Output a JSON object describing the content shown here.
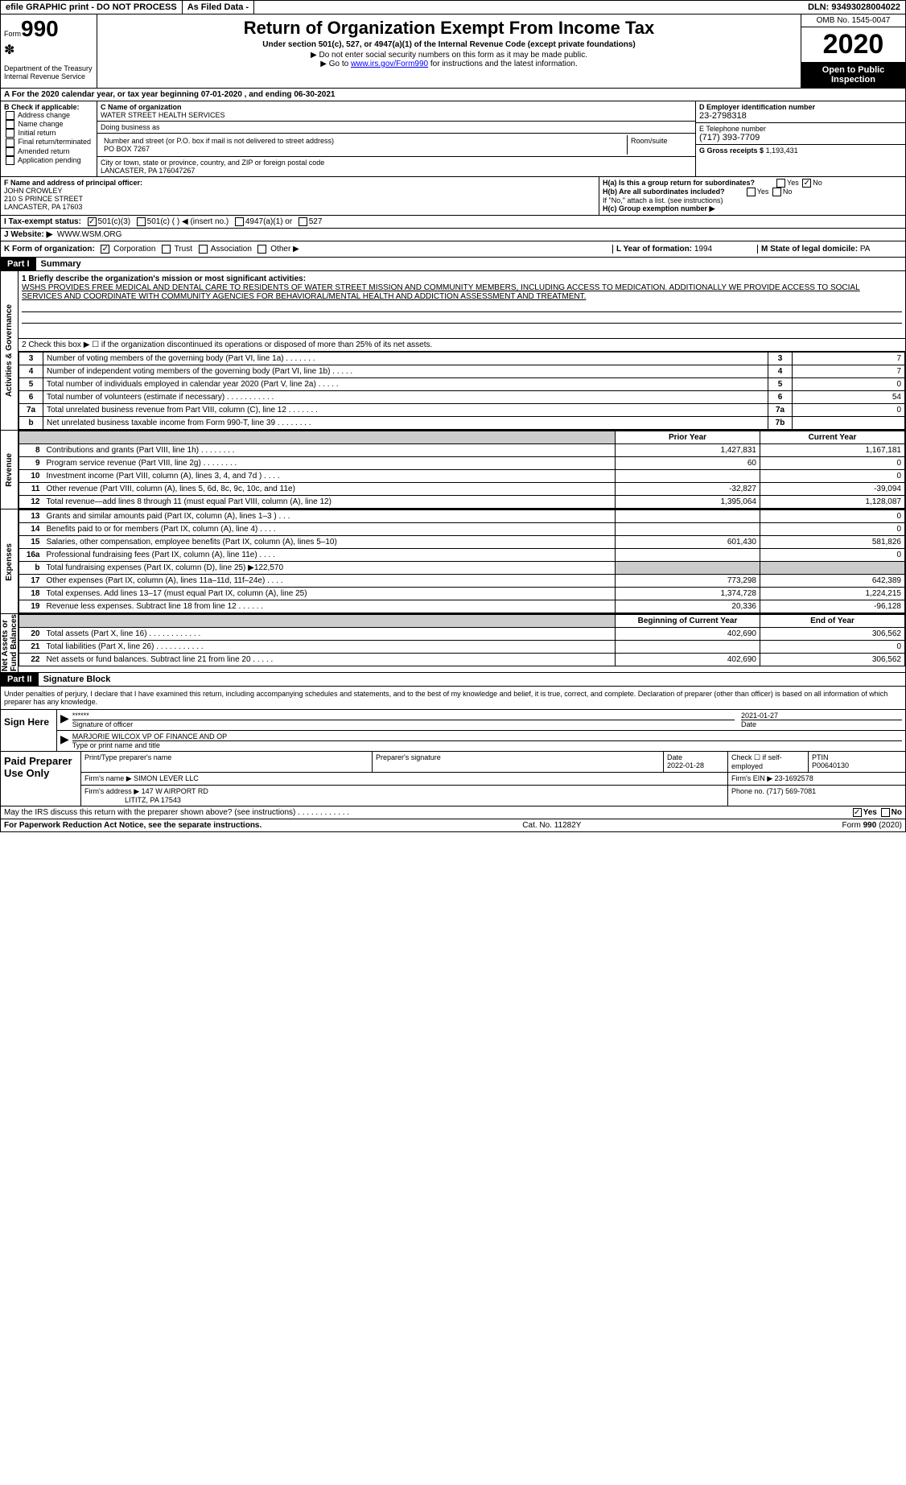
{
  "topbar": {
    "efile": "efile GRAPHIC print - DO NOT PROCESS",
    "asfiled": "As Filed Data -",
    "dln": "DLN: 93493028004022"
  },
  "header": {
    "form_label": "Form",
    "form_num": "990",
    "dept": "Department of the Treasury\nInternal Revenue Service",
    "title": "Return of Organization Exempt From Income Tax",
    "subtitle": "Under section 501(c), 527, or 4947(a)(1) of the Internal Revenue Code (except private foundations)",
    "note1": "▶ Do not enter social security numbers on this form as it may be made public.",
    "note2_pre": "▶ Go to ",
    "note2_link": "www.irs.gov/Form990",
    "note2_post": " for instructions and the latest information.",
    "omb": "OMB No. 1545-0047",
    "year": "2020",
    "open": "Open to Public Inspection"
  },
  "row_a": "A  For the 2020 calendar year, or tax year beginning 07-01-2020  , and ending 06-30-2021",
  "B": {
    "lbl": "B Check if applicable:",
    "items": [
      "Address change",
      "Name change",
      "Initial return",
      "Final return/terminated",
      "Amended return",
      "Application pending"
    ]
  },
  "C": {
    "name_lbl": "C Name of organization",
    "name": "WATER STREET HEALTH SERVICES",
    "dba_lbl": "Doing business as",
    "dba": "",
    "addr_lbl": "Number and street (or P.O. box if mail is not delivered to street address)",
    "addr": "PO BOX 7267",
    "room_lbl": "Room/suite",
    "city_lbl": "City or town, state or province, country, and ZIP or foreign postal code",
    "city": "LANCASTER, PA  176047267"
  },
  "D": {
    "lbl": "D Employer identification number",
    "val": "23-2798318"
  },
  "E": {
    "lbl": "E Telephone number",
    "val": "(717) 393-7709"
  },
  "G": {
    "lbl": "G Gross receipts $",
    "val": "1,193,431"
  },
  "F": {
    "lbl": "F  Name and address of principal officer:",
    "name": "JOHN CROWLEY",
    "street": "210 S PRINCE STREET",
    "city": "LANCASTER, PA  17603"
  },
  "H": {
    "a": "H(a) Is this a group return for subordinates?",
    "b": "H(b) Are all subordinates included?",
    "b_note": "If \"No,\" attach a list. (see instructions)",
    "c": "H(c) Group exemption number ▶"
  },
  "I": {
    "lbl": "I  Tax-exempt status:",
    "opt1": "501(c)(3)",
    "opt2": "501(c) (  ) ◀ (insert no.)",
    "opt3": "4947(a)(1) or",
    "opt4": "527"
  },
  "J": {
    "lbl": "J  Website: ▶",
    "val": "WWW.WSM.ORG"
  },
  "K": {
    "lbl": "K Form of organization:",
    "opts": [
      "Corporation",
      "Trust",
      "Association",
      "Other ▶"
    ]
  },
  "L": {
    "lbl": "L Year of formation:",
    "val": "1994"
  },
  "M": {
    "lbl": "M State of legal domicile:",
    "val": "PA"
  },
  "part1": {
    "hdr": "Part I",
    "title": "Summary",
    "mission_lbl": "1  Briefly describe the organization's mission or most significant activities:",
    "mission": "WSHS PROVIDES FREE MEDICAL AND DENTAL CARE TO RESIDENTS OF WATER STREET MISSION AND COMMUNITY MEMBERS, INCLUDING ACCESS TO MEDICATION. ADDITIONALLY WE PROVIDE ACCESS TO SOCIAL SERVICES AND COORDINATE WITH COMMUNITY AGENCIES FOR BEHAVIORAL/MENTAL HEALTH AND ADDICTION ASSESSMENT AND TREATMENT.",
    "line2": "2  Check this box ▶ ☐ if the organization discontinued its operations or disposed of more than 25% of its net assets.",
    "gov_lines": [
      {
        "n": "3",
        "desc": "Number of voting members of the governing body (Part VI, line 1a)   .   .   .   .   .   .   .",
        "box": "3",
        "val": "7"
      },
      {
        "n": "4",
        "desc": "Number of independent voting members of the governing body (Part VI, line 1b)   .   .   .   .   .",
        "box": "4",
        "val": "7"
      },
      {
        "n": "5",
        "desc": "Total number of individuals employed in calendar year 2020 (Part V, line 2a)   .   .   .   .   .",
        "box": "5",
        "val": "0"
      },
      {
        "n": "6",
        "desc": "Total number of volunteers (estimate if necessary)   .   .   .   .   .   .   .   .   .   .   .",
        "box": "6",
        "val": "54"
      },
      {
        "n": "7a",
        "desc": "Total unrelated business revenue from Part VIII, column (C), line 12   .   .   .   .   .   .   .",
        "box": "7a",
        "val": "0"
      },
      {
        "n": "b",
        "desc": "Net unrelated business taxable income from Form 990-T, line 39   .   .   .   .   .   .   .   .",
        "box": "7b",
        "val": ""
      }
    ],
    "prior_hdr": "Prior Year",
    "curr_hdr": "Current Year",
    "revenue": [
      {
        "n": "8",
        "desc": "Contributions and grants (Part VIII, line 1h)   .   .   .   .   .   .   .   .",
        "prior": "1,427,831",
        "curr": "1,167,181"
      },
      {
        "n": "9",
        "desc": "Program service revenue (Part VIII, line 2g)   .   .   .   .   .   .   .   .",
        "prior": "60",
        "curr": "0"
      },
      {
        "n": "10",
        "desc": "Investment income (Part VIII, column (A), lines 3, 4, and 7d )   .   .   .   .",
        "prior": "",
        "curr": "0"
      },
      {
        "n": "11",
        "desc": "Other revenue (Part VIII, column (A), lines 5, 6d, 8c, 9c, 10c, and 11e)",
        "prior": "-32,827",
        "curr": "-39,094"
      },
      {
        "n": "12",
        "desc": "Total revenue—add lines 8 through 11 (must equal Part VIII, column (A), line 12)",
        "prior": "1,395,064",
        "curr": "1,128,087"
      }
    ],
    "expenses": [
      {
        "n": "13",
        "desc": "Grants and similar amounts paid (Part IX, column (A), lines 1–3 )   .   .   .",
        "prior": "",
        "curr": "0"
      },
      {
        "n": "14",
        "desc": "Benefits paid to or for members (Part IX, column (A), line 4)   .   .   .   .",
        "prior": "",
        "curr": "0"
      },
      {
        "n": "15",
        "desc": "Salaries, other compensation, employee benefits (Part IX, column (A), lines 5–10)",
        "prior": "601,430",
        "curr": "581,826"
      },
      {
        "n": "16a",
        "desc": "Professional fundraising fees (Part IX, column (A), line 11e)   .   .   .   .",
        "prior": "",
        "curr": "0"
      },
      {
        "n": "b",
        "desc": "Total fundraising expenses (Part IX, column (D), line 25) ▶122,570",
        "prior": "grey",
        "curr": "grey"
      },
      {
        "n": "17",
        "desc": "Other expenses (Part IX, column (A), lines 11a–11d, 11f–24e)   .   .   .   .",
        "prior": "773,298",
        "curr": "642,389"
      },
      {
        "n": "18",
        "desc": "Total expenses. Add lines 13–17 (must equal Part IX, column (A), line 25)",
        "prior": "1,374,728",
        "curr": "1,224,215"
      },
      {
        "n": "19",
        "desc": "Revenue less expenses. Subtract line 18 from line 12   .   .   .   .   .   .",
        "prior": "20,336",
        "curr": "-96,128"
      }
    ],
    "net_hdr_prior": "Beginning of Current Year",
    "net_hdr_curr": "End of Year",
    "net": [
      {
        "n": "20",
        "desc": "Total assets (Part X, line 16)   .   .   .   .   .   .   .   .   .   .   .   .",
        "prior": "402,690",
        "curr": "306,562"
      },
      {
        "n": "21",
        "desc": "Total liabilities (Part X, line 26)   .   .   .   .   .   .   .   .   .   .   .",
        "prior": "",
        "curr": "0"
      },
      {
        "n": "22",
        "desc": "Net assets or fund balances. Subtract line 21 from line 20   .   .   .   .   .",
        "prior": "402,690",
        "curr": "306,562"
      }
    ]
  },
  "vert": {
    "gov": "Activities & Governance",
    "rev": "Revenue",
    "exp": "Expenses",
    "net": "Net Assets or\nFund Balances"
  },
  "part2": {
    "hdr": "Part II",
    "title": "Signature Block",
    "decl": "Under penalties of perjury, I declare that I have examined this return, including accompanying schedules and statements, and to the best of my knowledge and belief, it is true, correct, and complete. Declaration of preparer (other than officer) is based on all information of which preparer has any knowledge.",
    "sign_here": "Sign Here",
    "sig_stars": "******",
    "sig_officer_lbl": "Signature of officer",
    "sig_date": "2021-01-27",
    "sig_date_lbl": "Date",
    "sig_name": "MARJORIE WILCOX VP OF FINANCE AND OP",
    "sig_name_lbl": "Type or print name and title",
    "paid": "Paid Preparer Use Only",
    "prep_name_lbl": "Print/Type preparer's name",
    "prep_sig_lbl": "Preparer's signature",
    "prep_date_lbl": "Date",
    "prep_date": "2022-01-28",
    "prep_self_lbl": "Check ☐ if self-employed",
    "ptin_lbl": "PTIN",
    "ptin": "P00640130",
    "firm_name_lbl": "Firm's name  ▶",
    "firm_name": "SIMON LEVER LLC",
    "firm_ein_lbl": "Firm's EIN ▶",
    "firm_ein": "23-1692578",
    "firm_addr_lbl": "Firm's address ▶",
    "firm_addr1": "147 W AIRPORT RD",
    "firm_addr2": "LITITZ, PA  17543",
    "phone_lbl": "Phone no.",
    "phone": "(717) 569-7081"
  },
  "discuss": "May the IRS discuss this return with the preparer shown above? (see instructions)   .   .   .   .   .   .   .   .   .   .   .   .",
  "footer": {
    "left": "For Paperwork Reduction Act Notice, see the separate instructions.",
    "mid": "Cat. No. 11282Y",
    "right_pre": "Form ",
    "right_bold": "990",
    "right_post": " (2020)"
  }
}
